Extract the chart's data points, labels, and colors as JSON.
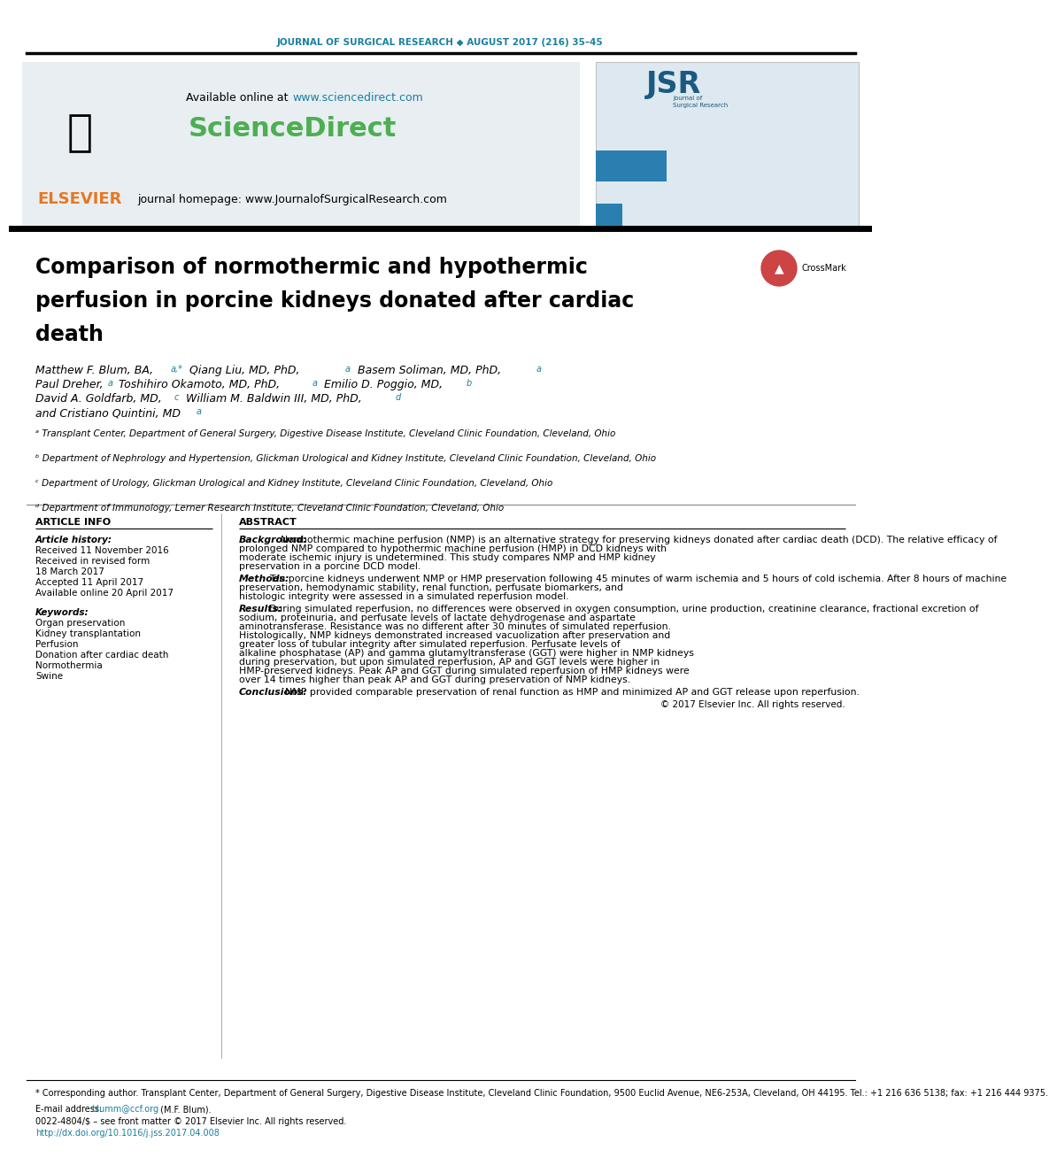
{
  "journal_line": "JOURNAL OF SURGICAL RESEARCH ◆ AUGUST 2017 (216) 35–45",
  "journal_line_color": "#1a7fa0",
  "elsevier_color": "#e87722",
  "sciencedirect_color": "#4caf50",
  "available_online_text": "Available online at ",
  "available_online_url": "www.sciencedirect.com",
  "url_color": "#1a7fa0",
  "journal_homepage": "journal homepage: www.JournalofSurgicalResearch.com",
  "title": "Comparison of normothermic and hypothermic\nperfusion in porcine kidneys donated after cardiac\ndeath",
  "authors_line1": "Matthew F. Blum, BA,",
  "authors_sup1": "a,*",
  "authors_line1b": " Qiang Liu, MD, PhD,",
  "authors_sup2": "a",
  "authors_line1c": " Basem Soliman, MD, PhD,",
  "authors_sup3": "a",
  "authors_line2": "Paul Dreher,",
  "authors_sup4": "a",
  "authors_line2b": " Toshihiro Okamoto, MD, PhD,",
  "authors_sup5": "a",
  "authors_line2c": " Emilio D. Poggio, MD,",
  "authors_sup6": "b",
  "authors_line3": "David A. Goldfarb, MD,",
  "authors_sup7": "c",
  "authors_line3b": " William M. Baldwin III, MD, PhD,",
  "authors_sup8": "d",
  "authors_line4": "and Cristiano Quintini, MD",
  "authors_sup9": "a",
  "affil_a": "ᵃ Transplant Center, Department of General Surgery, Digestive Disease Institute, Cleveland Clinic Foundation, Cleveland, Ohio",
  "affil_b": "ᵇ Department of Nephrology and Hypertension, Glickman Urological and Kidney Institute, Cleveland Clinic Foundation, Cleveland, Ohio",
  "affil_c": "ᶜ Department of Urology, Glickman Urological and Kidney Institute, Cleveland Clinic Foundation, Cleveland, Ohio",
  "affil_d": "ᵈ Department of Immunology, Lerner Research Institute, Cleveland Clinic Foundation, Cleveland, Ohio",
  "article_info_title": "ARTICLE INFO",
  "article_history_title": "Article history:",
  "article_history": "Received 11 November 2016\nReceived in revised form\n18 March 2017\nAccepted 11 April 2017\nAvailable online 20 April 2017",
  "keywords_title": "Keywords:",
  "keywords": "Organ preservation\nKidney transplantation\nPerfusion\nDonation after cardiac death\nNormothermia\nSwine",
  "abstract_title": "ABSTRACT",
  "abstract_background_title": "Background:",
  "abstract_background": " Normothermic machine perfusion (NMP) is an alternative strategy for preserving kidneys donated after cardiac death (DCD). The relative efficacy of prolonged NMP compared to hypothermic machine perfusion (HMP) in DCD kidneys with moderate ischemic injury is undetermined. This study compares NMP and HMP kidney preservation in a porcine DCD model.",
  "abstract_methods_title": "Methods:",
  "abstract_methods": " Ten porcine kidneys underwent NMP or HMP preservation following 45 minutes of warm ischemia and 5 hours of cold ischemia. After 8 hours of machine preservation, hemodynamic stability, renal function, perfusate biomarkers, and histologic integrity were assessed in a simulated reperfusion model.",
  "abstract_results_title": "Results:",
  "abstract_results": " During simulated reperfusion, no differences were observed in oxygen consumption, urine production, creatinine clearance, fractional excretion of sodium, proteinuria, and perfusate levels of lactate dehydrogenase and aspartate aminotransferase. Resistance was no different after 30 minutes of simulated reperfusion. Histologically, NMP kidneys demonstrated increased vacuolization after preservation and greater loss of tubular integrity after simulated reperfusion. Perfusate levels of alkaline phosphatase (AP) and gamma glutamyltransferase (GGT) were higher in NMP kidneys during preservation, but upon simulated reperfusion, AP and GGT levels were higher in HMP-preserved kidneys. Peak AP and GGT during simulated reperfusion of HMP kidneys were over 14 times higher than peak AP and GGT during preservation of NMP kidneys.",
  "abstract_conclusions_title": "Conclusions:",
  "abstract_conclusions": " NMP provided comparable preservation of renal function as HMP and minimized AP and GGT release upon reperfusion.",
  "copyright": "© 2017 Elsevier Inc. All rights reserved.",
  "footnote_star": "* Corresponding author. Transplant Center, Department of General Surgery, Digestive Disease Institute, Cleveland Clinic Foundation, 9500 Euclid Avenue, NE6-253A, Cleveland, OH 44195. Tel.: +1 216 636 5138; fax: +1 216 444 9375.",
  "footnote_email_label": "E-mail address: ",
  "footnote_email": "blumm@ccf.org",
  "footnote_email_rest": " (M.F. Blum).",
  "footnote_issn": "0022-4804/$ – see front matter © 2017 Elsevier Inc. All rights reserved.",
  "footnote_doi": "http://dx.doi.org/10.1016/j.jss.2017.04.008",
  "doi_color": "#1a7fa0",
  "email_color": "#1a7fa0",
  "bg_color": "#ffffff",
  "text_color": "#000000",
  "section_line_color": "#c8c8c8",
  "header_box_color": "#e8eef2"
}
